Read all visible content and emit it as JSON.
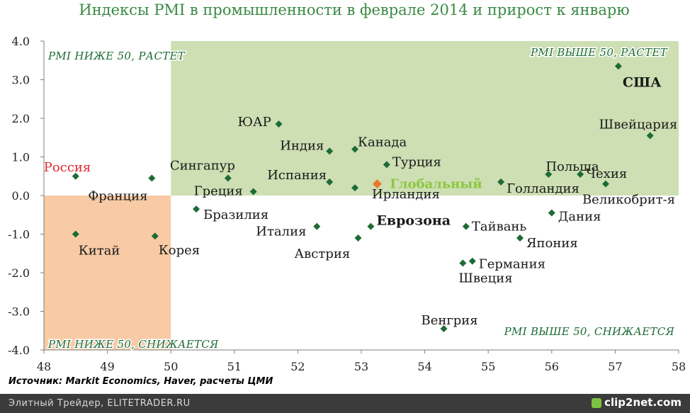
{
  "chart_data": {
    "type": "scatter",
    "title": "Индексы PMI в промышленности в феврале 2014 и прирост к январю",
    "source": "Источник: Markit Economics, Haver, расчеты ЦМИ",
    "xlim": [
      48,
      58
    ],
    "ylim": [
      -4,
      4
    ],
    "x_ticks": [
      "48",
      "49",
      "50",
      "51",
      "52",
      "53",
      "54",
      "55",
      "56",
      "57",
      "58"
    ],
    "y_ticks": [
      "4.0",
      "3.0",
      "2.0",
      "1.0",
      "0.0",
      "-1.0",
      "-2.0",
      "-3.0",
      "-4.0"
    ],
    "colors": {
      "title": "#3a8a43",
      "marker": "#1e6b36",
      "quad_green": "#cddfb3",
      "quad_orange": "#f8cba6",
      "quad_label": "#1e6b36",
      "global_marker": "#e8792b",
      "global_label": "#8dc63f",
      "russia_label": "#e0282e"
    },
    "quadrant_labels": [
      {
        "text": "PMI НИЖЕ 50, РАСТЕТ",
        "pos": "top-left"
      },
      {
        "text": "PMI ВЫШЕ 50, РАСТЕТ",
        "pos": "top-right"
      },
      {
        "text": "PMI НИЖЕ 50, СНИЖАЕТСЯ",
        "pos": "bottom-left"
      },
      {
        "text": "PMI ВЫШЕ 50, СНИЖАЕТСЯ",
        "pos": "bottom-right"
      }
    ],
    "points": [
      {
        "name": "Россия",
        "x": 48.5,
        "y": 0.5,
        "style": "red"
      },
      {
        "name": "Франция",
        "x": 49.7,
        "y": 0.45
      },
      {
        "name": "Китай",
        "x": 48.5,
        "y": -1.0
      },
      {
        "name": "Корея",
        "x": 49.75,
        "y": -1.05
      },
      {
        "name": "Сингапур",
        "x": 50.9,
        "y": 0.45
      },
      {
        "name": "Греция",
        "x": 51.3,
        "y": 0.1
      },
      {
        "name": "Бразилия",
        "x": 50.4,
        "y": -0.35
      },
      {
        "name": "ЮАР",
        "x": 51.7,
        "y": 1.85
      },
      {
        "name": "Индия",
        "x": 52.5,
        "y": 1.15
      },
      {
        "name": "Канада",
        "x": 52.9,
        "y": 1.2
      },
      {
        "name": "Испания",
        "x": 52.5,
        "y": 0.35
      },
      {
        "name": "Ирландия",
        "x": 52.9,
        "y": 0.2
      },
      {
        "name": "Турция",
        "x": 53.4,
        "y": 0.8
      },
      {
        "name": "Глобальный",
        "x": 53.25,
        "y": 0.3,
        "style": "global"
      },
      {
        "name": "Италия",
        "x": 52.3,
        "y": -0.8
      },
      {
        "name": "Австрия",
        "x": 52.95,
        "y": -1.1
      },
      {
        "name": "Еврозона",
        "x": 53.15,
        "y": -0.8,
        "style": "bold"
      },
      {
        "name": "Тайвань",
        "x": 54.65,
        "y": -0.8
      },
      {
        "name": "Венгрия",
        "x": 54.3,
        "y": -3.45
      },
      {
        "name": "Германия",
        "x": 54.75,
        "y": -1.7
      },
      {
        "name": "Швеция",
        "x": 54.6,
        "y": -1.75
      },
      {
        "name": "Голландия",
        "x": 55.2,
        "y": 0.35
      },
      {
        "name": "Польша",
        "x": 55.95,
        "y": 0.55
      },
      {
        "name": "Чехия",
        "x": 56.45,
        "y": 0.55
      },
      {
        "name": "Великобрит-я",
        "x": 56.85,
        "y": 0.3
      },
      {
        "name": "Дания",
        "x": 56.0,
        "y": -0.45
      },
      {
        "name": "Япония",
        "x": 55.5,
        "y": -1.1
      },
      {
        "name": "США",
        "x": 57.05,
        "y": 3.35,
        "style": "bold"
      },
      {
        "name": "Швейцария",
        "x": 57.55,
        "y": 1.55
      }
    ]
  },
  "footer": {
    "left": "Элитный Трейдер, ELITETRADER.RU",
    "logo": "clip2net.com"
  }
}
